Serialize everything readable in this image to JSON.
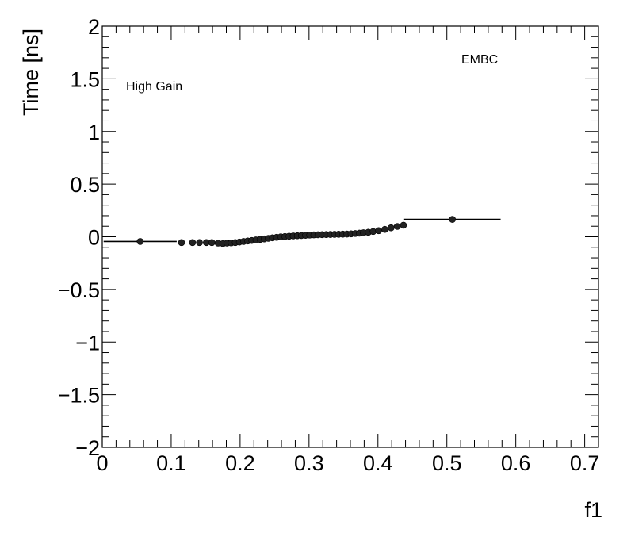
{
  "chart_data": {
    "type": "scatter",
    "title": "",
    "xlabel": "f1",
    "ylabel": "Time [ns]",
    "xlim": [
      0,
      0.72
    ],
    "ylim": [
      -2,
      2
    ],
    "x_ticks": [
      "0",
      "0.1",
      "0.2",
      "0.3",
      "0.4",
      "0.5",
      "0.6",
      "0.7"
    ],
    "y_ticks": [
      "2",
      "1.5",
      "1",
      "0.5",
      "0",
      "−0.5",
      "−1",
      "−1.5",
      "−2"
    ],
    "grid": false,
    "annotations": [
      "High Gain",
      "EMBC"
    ],
    "points": [
      {
        "x": 0.055,
        "y": -0.045,
        "xerr": 0.053
      },
      {
        "x": 0.115,
        "y": -0.055
      },
      {
        "x": 0.131,
        "y": -0.055
      },
      {
        "x": 0.141,
        "y": -0.055
      },
      {
        "x": 0.151,
        "y": -0.055
      },
      {
        "x": 0.159,
        "y": -0.055
      },
      {
        "x": 0.168,
        "y": -0.06
      },
      {
        "x": 0.175,
        "y": -0.065
      },
      {
        "x": 0.181,
        "y": -0.06
      },
      {
        "x": 0.187,
        "y": -0.058
      },
      {
        "x": 0.193,
        "y": -0.055
      },
      {
        "x": 0.199,
        "y": -0.05
      },
      {
        "x": 0.205,
        "y": -0.045
      },
      {
        "x": 0.211,
        "y": -0.04
      },
      {
        "x": 0.217,
        "y": -0.035
      },
      {
        "x": 0.223,
        "y": -0.03
      },
      {
        "x": 0.229,
        "y": -0.025
      },
      {
        "x": 0.235,
        "y": -0.02
      },
      {
        "x": 0.241,
        "y": -0.015
      },
      {
        "x": 0.247,
        "y": -0.01
      },
      {
        "x": 0.253,
        "y": -0.005
      },
      {
        "x": 0.259,
        "y": 0.0
      },
      {
        "x": 0.265,
        "y": 0.002
      },
      {
        "x": 0.271,
        "y": 0.005
      },
      {
        "x": 0.277,
        "y": 0.008
      },
      {
        "x": 0.283,
        "y": 0.01
      },
      {
        "x": 0.289,
        "y": 0.012
      },
      {
        "x": 0.295,
        "y": 0.014
      },
      {
        "x": 0.301,
        "y": 0.016
      },
      {
        "x": 0.307,
        "y": 0.018
      },
      {
        "x": 0.313,
        "y": 0.019
      },
      {
        "x": 0.319,
        "y": 0.02
      },
      {
        "x": 0.325,
        "y": 0.021
      },
      {
        "x": 0.331,
        "y": 0.022
      },
      {
        "x": 0.337,
        "y": 0.023
      },
      {
        "x": 0.343,
        "y": 0.024
      },
      {
        "x": 0.349,
        "y": 0.025
      },
      {
        "x": 0.355,
        "y": 0.026
      },
      {
        "x": 0.361,
        "y": 0.028
      },
      {
        "x": 0.367,
        "y": 0.031
      },
      {
        "x": 0.373,
        "y": 0.034
      },
      {
        "x": 0.379,
        "y": 0.038
      },
      {
        "x": 0.386,
        "y": 0.043
      },
      {
        "x": 0.393,
        "y": 0.05
      },
      {
        "x": 0.401,
        "y": 0.058
      },
      {
        "x": 0.41,
        "y": 0.07
      },
      {
        "x": 0.419,
        "y": 0.085
      },
      {
        "x": 0.428,
        "y": 0.098
      },
      {
        "x": 0.437,
        "y": 0.11
      },
      {
        "x": 0.508,
        "y": 0.165,
        "xerr": 0.07
      }
    ]
  }
}
